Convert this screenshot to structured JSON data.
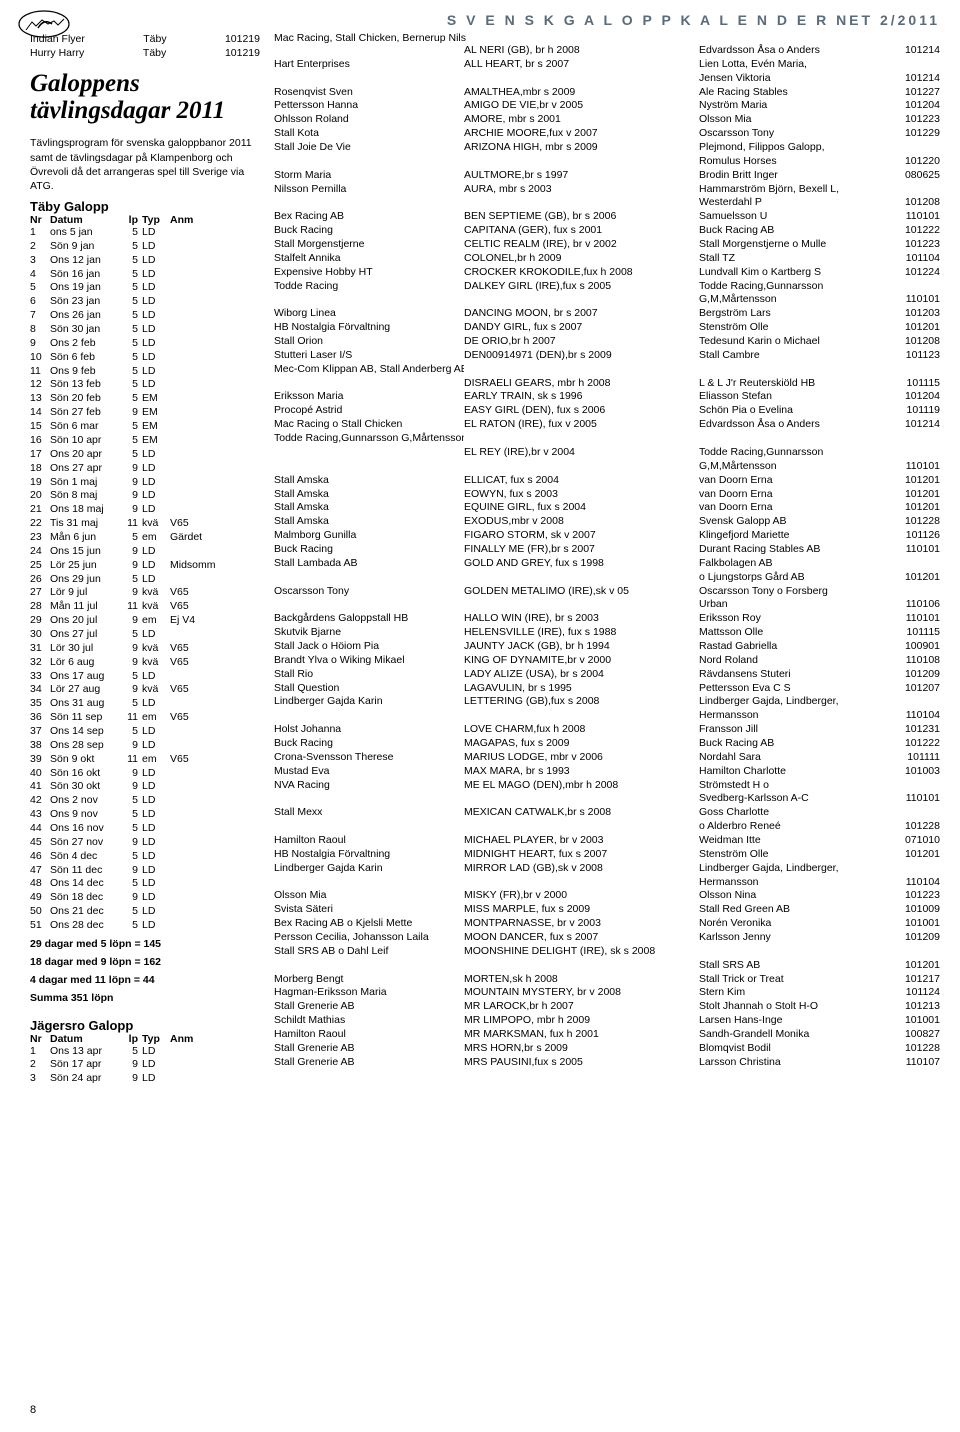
{
  "header": "S V E N S K   G A L O P P K A L E N D E R  NET 2/2011",
  "page_number": "8",
  "left": {
    "intro_rows": [
      [
        "Indian Flyer",
        "Täby",
        "101219"
      ],
      [
        "Hurry Harry",
        "Täby",
        "101219"
      ]
    ],
    "title": "Galoppens tävlingsdagar 2011",
    "para": "Tävlingsprogram för svenska galoppbanor 2011 samt de tävlingsdagar på Klampenborg och Övrevoli då det arrangeras spel till Sverige via ATG.",
    "taby_title": "Täby Galopp",
    "sched_headers": [
      "Nr",
      "Datum",
      "lp",
      "Typ",
      "Anm"
    ],
    "taby_sched": [
      [
        "1",
        "ons",
        "5 jan",
        "5",
        "LD",
        ""
      ],
      [
        "2",
        "Sön",
        "9 jan",
        "5",
        "LD",
        ""
      ],
      [
        "3",
        "Ons",
        "12 jan",
        "5",
        "LD",
        ""
      ],
      [
        "4",
        "Sön",
        "16 jan",
        "5",
        "LD",
        ""
      ],
      [
        "5",
        "Ons",
        "19 jan",
        "5",
        "LD",
        ""
      ],
      [
        "6",
        "Sön",
        "23 jan",
        "5",
        "LD",
        ""
      ],
      [
        "7",
        "Ons",
        "26 jan",
        "5",
        "LD",
        ""
      ],
      [
        "8",
        "Sön",
        "30 jan",
        "5",
        "LD",
        ""
      ],
      [
        "9",
        "Ons",
        "2 feb",
        "5",
        "LD",
        ""
      ],
      [
        "10",
        "Sön",
        "6 feb",
        "5",
        "LD",
        ""
      ],
      [
        "11",
        "Ons",
        "9 feb",
        "5",
        "LD",
        ""
      ],
      [
        "12",
        "Sön",
        "13 feb",
        "5",
        "LD",
        ""
      ],
      [
        "13",
        "Sön",
        "20 feb",
        "5",
        "EM",
        ""
      ],
      [
        "14",
        "Sön",
        "27 feb",
        "9",
        "EM",
        ""
      ],
      [
        "15",
        "Sön",
        "6 mar",
        "5",
        "EM",
        ""
      ],
      [
        "16",
        "Sön",
        "10 apr",
        "5",
        "EM",
        ""
      ],
      [
        "17",
        "Ons",
        "20 apr",
        "5",
        "LD",
        ""
      ],
      [
        "18",
        "Ons",
        "27 apr",
        "9",
        "LD",
        ""
      ],
      [
        "19",
        "Sön",
        "1 maj",
        "9",
        "LD",
        ""
      ],
      [
        "20",
        "Sön",
        "8 maj",
        "9",
        "LD",
        ""
      ],
      [
        "21",
        "Ons",
        "18 maj",
        "9",
        "LD",
        ""
      ],
      [
        "22",
        "Tis",
        "31 maj",
        "11",
        "kvä",
        "V65"
      ],
      [
        "23",
        "Mån",
        "6 jun",
        "5",
        "em",
        "Gärdet"
      ],
      [
        "24",
        "Ons",
        "15 jun",
        "9",
        "LD",
        ""
      ],
      [
        "25",
        "Lör",
        "25 jun",
        "9",
        "LD",
        "Midsomm"
      ],
      [
        "26",
        "Ons",
        "29 jun",
        "5",
        "LD",
        ""
      ],
      [
        "27",
        "Lör",
        "9 jul",
        "9",
        "kvä",
        "V65"
      ],
      [
        "28",
        "Mån",
        "11 jul",
        "11",
        "kvä",
        "V65"
      ],
      [
        "29",
        "Ons",
        "20 jul",
        "9",
        "em",
        "Ej V4"
      ],
      [
        "30",
        "Ons",
        "27 jul",
        "5",
        "LD",
        ""
      ],
      [
        "31",
        "Lör",
        "30 jul",
        "9",
        "kvä",
        "V65"
      ],
      [
        "32",
        "Lör",
        "6 aug",
        "9",
        "kvä",
        "V65"
      ],
      [
        "33",
        "Ons",
        "17 aug",
        "5",
        "LD",
        ""
      ],
      [
        "34",
        "Lör",
        "27 aug",
        "9",
        "kvä",
        "V65"
      ],
      [
        "35",
        "Ons",
        "31 aug",
        "5",
        "LD",
        ""
      ],
      [
        "36",
        "Sön",
        "11 sep",
        "11",
        "em",
        "V65"
      ],
      [
        "37",
        "Ons",
        "14 sep",
        "5",
        "LD",
        ""
      ],
      [
        "38",
        "Ons",
        "28 sep",
        "9",
        "LD",
        ""
      ],
      [
        "39",
        "Sön",
        "9 okt",
        "11",
        "em",
        "V65"
      ],
      [
        "40",
        "Sön",
        "16 okt",
        "9",
        "LD",
        ""
      ],
      [
        "41",
        "Sön",
        "30 okt",
        "9",
        "LD",
        ""
      ],
      [
        "42",
        "Ons",
        "2 nov",
        "5",
        "LD",
        ""
      ],
      [
        "43",
        "Ons",
        "9 nov",
        "5",
        "LD",
        ""
      ],
      [
        "44",
        "Ons",
        "16 nov",
        "5",
        "LD",
        ""
      ],
      [
        "45",
        "Sön",
        "27 nov",
        "9",
        "LD",
        ""
      ],
      [
        "46",
        "Sön",
        "4 dec",
        "5",
        "LD",
        ""
      ],
      [
        "47",
        "Sön",
        "11 dec",
        "9",
        "LD",
        ""
      ],
      [
        "48",
        "Ons",
        "14 dec",
        "5",
        "LD",
        ""
      ],
      [
        "49",
        "Sön",
        "18 dec",
        "9",
        "LD",
        ""
      ],
      [
        "50",
        "Ons",
        "21 dec",
        "5",
        "LD",
        ""
      ],
      [
        "51",
        "Ons",
        "28 dec",
        "5",
        "LD",
        ""
      ]
    ],
    "summary_lines": [
      "29 dagar med 5 löpn = 145",
      "18 dagar med 9 löpn = 162",
      "4 dagar med 11 löpn = 44",
      "Summa 351 löpn"
    ],
    "jagersro_title": "Jägersro Galopp",
    "jagersro_sched": [
      [
        "1",
        "Ons",
        "13 apr",
        "5",
        "LD",
        ""
      ],
      [
        "2",
        "Sön",
        "17 apr",
        "9",
        "LD",
        ""
      ],
      [
        "3",
        "Sön",
        "24 apr",
        "9",
        "LD",
        ""
      ]
    ]
  },
  "right": {
    "title": "Mac Racing, Stall Chicken, Bernerup Nils",
    "entries": [
      [
        "",
        "AL NERI (GB), br h 2008",
        "Edvardsson Åsa o Anders",
        "101214"
      ],
      [
        "Hart Enterprises",
        "ALL HEART, br s 2007",
        "Lien Lotta, Evén Maria,",
        ""
      ],
      [
        "",
        "",
        "Jensen Viktoria",
        "101214"
      ],
      [
        "Rosenqvist Sven",
        "AMALTHEA,mbr s 2009",
        "Ale Racing Stables",
        "101227"
      ],
      [
        "Pettersson Hanna",
        "AMIGO DE VIE,br v 2005",
        "Nyström Maria",
        "101204"
      ],
      [
        "Ohlsson Roland",
        "AMORE, mbr s 2001",
        "Olsson Mia",
        "101223"
      ],
      [
        "Stall Kota",
        "ARCHIE MOORE,fux v 2007",
        "Oscarsson Tony",
        "101229"
      ],
      [
        "Stall Joie De Vie",
        "ARIZONA HIGH, mbr s 2009",
        "Plejmond, Filippos Galopp,",
        ""
      ],
      [
        "",
        "",
        "Romulus Horses",
        "101220"
      ],
      [
        "Storm Maria",
        "AULTMORE,br s 1997",
        "Brodin Britt Inger",
        "080625"
      ],
      [
        "Nilsson Pernilla",
        "AURA, mbr s 2003",
        "Hammarström Björn, Bexell L,",
        ""
      ],
      [
        "",
        "",
        "Westerdahl P",
        "101208"
      ],
      [
        "Bex Racing AB",
        "BEN SEPTIEME (GB), br s 2006",
        "Samuelsson U",
        "110101"
      ],
      [
        "Buck Racing",
        "CAPITANA (GER), fux s 2001",
        "Buck Racing AB",
        "101222"
      ],
      [
        "Stall Morgenstjerne",
        "CELTIC REALM (IRE), br v 2002",
        "Stall Morgenstjerne o Mulle",
        "101223"
      ],
      [
        "Stalfelt Annika",
        "COLONEL,br h 2009",
        "Stall TZ",
        "101104"
      ],
      [
        "Expensive Hobby HT",
        "CROCKER KROKODILE,fux h 2008",
        "Lundvall Kim o Kartberg S",
        "101224"
      ],
      [
        "Todde Racing",
        "DALKEY GIRL (IRE),fux s 2005",
        "Todde Racing,Gunnarsson",
        ""
      ],
      [
        "",
        "",
        "G,M,Mårtensson",
        "110101"
      ],
      [
        "Wiborg Linea",
        "DANCING MOON, br s 2007",
        "Bergström Lars",
        "101203"
      ],
      [
        "HB Nostalgia Förvaltning",
        "DANDY GIRL, fux s 2007",
        "Stenström Olle",
        "101201"
      ],
      [
        "Stall Orion",
        "DE ORIO,br h 2007",
        "Tedesund Karin o Michael",
        "101208"
      ],
      [
        "Stutteri Laser I/S",
        "DEN00914971 (DEN),br s 2009",
        "Stall Cambre",
        "101123"
      ],
      [
        "Mec-Com Klippan AB, Stall Anderberg AB",
        "",
        "",
        ""
      ],
      [
        "",
        "DISRAELI GEARS, mbr h 2008",
        "L & L J'r Reuterskiöld HB",
        "101115"
      ],
      [
        "Eriksson Maria",
        "EARLY TRAIN, sk s 1996",
        "Eliasson Stefan",
        "101204"
      ],
      [
        "Procopé Astrid",
        "EASY GIRL (DEN), fux s 2006",
        "Schön Pia o Evelina",
        "101119"
      ],
      [
        "Mac Racing o Stall Chicken",
        "EL RATON (IRE), fux v 2005",
        "Edvardsson Åsa o Anders",
        "101214"
      ],
      [
        "Todde Racing,Gunnarsson G,Mårtensson K",
        "",
        "",
        ""
      ],
      [
        "",
        "EL REY (IRE),br v 2004",
        "Todde Racing,Gunnarsson",
        ""
      ],
      [
        "",
        "",
        "G,M,Mårtensson",
        "110101"
      ],
      [
        "Stall Amska",
        "ELLICAT, fux s 2004",
        "van Doorn Erna",
        "101201"
      ],
      [
        "Stall Amska",
        "EOWYN, fux s 2003",
        "van Doorn Erna",
        "101201"
      ],
      [
        "Stall Amska",
        "EQUINE GIRL, fux s 2004",
        "van Doorn Erna",
        "101201"
      ],
      [
        "Stall Amska",
        "EXODUS,mbr v 2008",
        "Svensk Galopp AB",
        "101228"
      ],
      [
        "Malmborg Gunilla",
        "FIGARO STORM, sk v 2007",
        "Klingefjord Mariette",
        "101126"
      ],
      [
        "Buck Racing",
        "FINALLY ME (FR),br s 2007",
        "Durant Racing Stables AB",
        "110101"
      ],
      [
        "Stall Lambada AB",
        "GOLD AND GREY, fux s 1998",
        "Falkbolagen AB",
        ""
      ],
      [
        "",
        "",
        "o Ljungstorps Gård AB",
        "101201"
      ],
      [
        "Oscarsson Tony",
        "GOLDEN METALIMO (IRE),sk v 05",
        "Oscarsson Tony o Forsberg",
        ""
      ],
      [
        "",
        "",
        "Urban",
        "110106"
      ],
      [
        "Backgårdens Galoppstall HB",
        "HALLO WIN (IRE), br s 2003",
        "Eriksson Roy",
        "110101"
      ],
      [
        "Skutvik Bjarne",
        "HELENSVILLE (IRE), fux s 1988",
        "Mattsson Olle",
        "101115"
      ],
      [
        "Stall Jack o Höiom Pia",
        "JAUNTY JACK (GB), br h 1994",
        "Rastad Gabriella",
        "100901"
      ],
      [
        "Brandt Ylva o Wiking Mikael",
        "KING OF DYNAMITE,br v 2000",
        "Nord Roland",
        "110108"
      ],
      [
        "Stall Rio",
        "LADY ALIZE (USA), br s 2004",
        "Rävdansens Stuteri",
        "101209"
      ],
      [
        "Stall Question",
        "LAGAVULIN, br s 1995",
        "Pettersson Eva C S",
        "101207"
      ],
      [
        "Lindberger Gajda Karin",
        "LETTERING (GB),fux s 2008",
        "Lindberger Gajda, Lindberger,",
        ""
      ],
      [
        "",
        "",
        "Hermansson",
        "110104"
      ],
      [
        "Holst Johanna",
        "LOVE CHARM,fux h 2008",
        "Fransson Jill",
        "101231"
      ],
      [
        "Buck Racing",
        "MAGAPAS, fux s 2009",
        "Buck Racing AB",
        "101222"
      ],
      [
        "Crona-Svensson Therese",
        "MARIUS LODGE, mbr v 2006",
        "Nordahl Sara",
        "101111"
      ],
      [
        "Mustad Eva",
        "MAX MARA, br s 1993",
        "Hamilton Charlotte",
        "101003"
      ],
      [
        "NVA Racing",
        "ME EL MAGO (DEN),mbr h 2008",
        "Strömstedt  H o",
        ""
      ],
      [
        "",
        "",
        "Svedberg-Karlsson A-C",
        "110101"
      ],
      [
        "Stall Mexx",
        "MEXICAN CATWALK,br s 2008",
        "Goss Charlotte",
        ""
      ],
      [
        "",
        "",
        "o Alderbro Reneé",
        "101228"
      ],
      [
        "Hamilton Raoul",
        "MICHAEL PLAYER, br v 2003",
        "Weidman Itte",
        "071010"
      ],
      [
        "HB Nostalgia Förvaltning",
        "MIDNIGHT HEART, fux s 2007",
        "Stenström Olle",
        "101201"
      ],
      [
        "Lindberger Gajda Karin",
        "MIRROR LAD (GB),sk v 2008",
        "Lindberger Gajda, Lindberger,",
        ""
      ],
      [
        "",
        "",
        "Hermansson",
        "110104"
      ],
      [
        "Olsson Mia",
        "MISKY (FR),br v 2000",
        "Olsson Nina",
        "101223"
      ],
      [
        "Svista Säteri",
        "MISS MARPLE, fux s 2009",
        "Stall Red Green AB",
        "101009"
      ],
      [
        "Bex Racing AB o Kjelsli Mette",
        "MONTPARNASSE, br v 2003",
        "Norén Veronika",
        "101001"
      ],
      [
        "Persson Cecilia, Johansson Laila",
        "MOON DANCER, fux s 2007",
        "Karlsson Jenny",
        "101209"
      ],
      [
        "Stall SRS AB o Dahl Leif",
        "MOONSHINE DELIGHT (IRE), sk s 2008",
        "",
        ""
      ],
      [
        "",
        "",
        "Stall SRS AB",
        "101201"
      ],
      [
        "Morberg Bengt",
        "MORTEN,sk h 2008",
        "Stall Trick or Treat",
        "101217"
      ],
      [
        "Hagman-Eriksson Maria",
        "MOUNTAIN MYSTERY, br v 2008",
        "Stern Kim",
        "101124"
      ],
      [
        "Stall Grenerie AB",
        "MR LAROCK,br h 2007",
        "Stolt Jhannah o Stolt H-O",
        "101213"
      ],
      [
        "Schildt Mathias",
        "MR LIMPOPO, mbr h 2009",
        "Larsen Hans-Inge",
        "101001"
      ],
      [
        "Hamilton Raoul",
        "MR MARKSMAN, fux h 2001",
        "Sandh-Grandell Monika",
        "100827"
      ],
      [
        "Stall Grenerie AB",
        "MRS HORN,br s 2009",
        "Blomqvist Bodil",
        "101228"
      ],
      [
        "Stall Grenerie AB",
        "MRS PAUSINI,fux s 2005",
        "Larsson Christina",
        "110107"
      ]
    ]
  }
}
